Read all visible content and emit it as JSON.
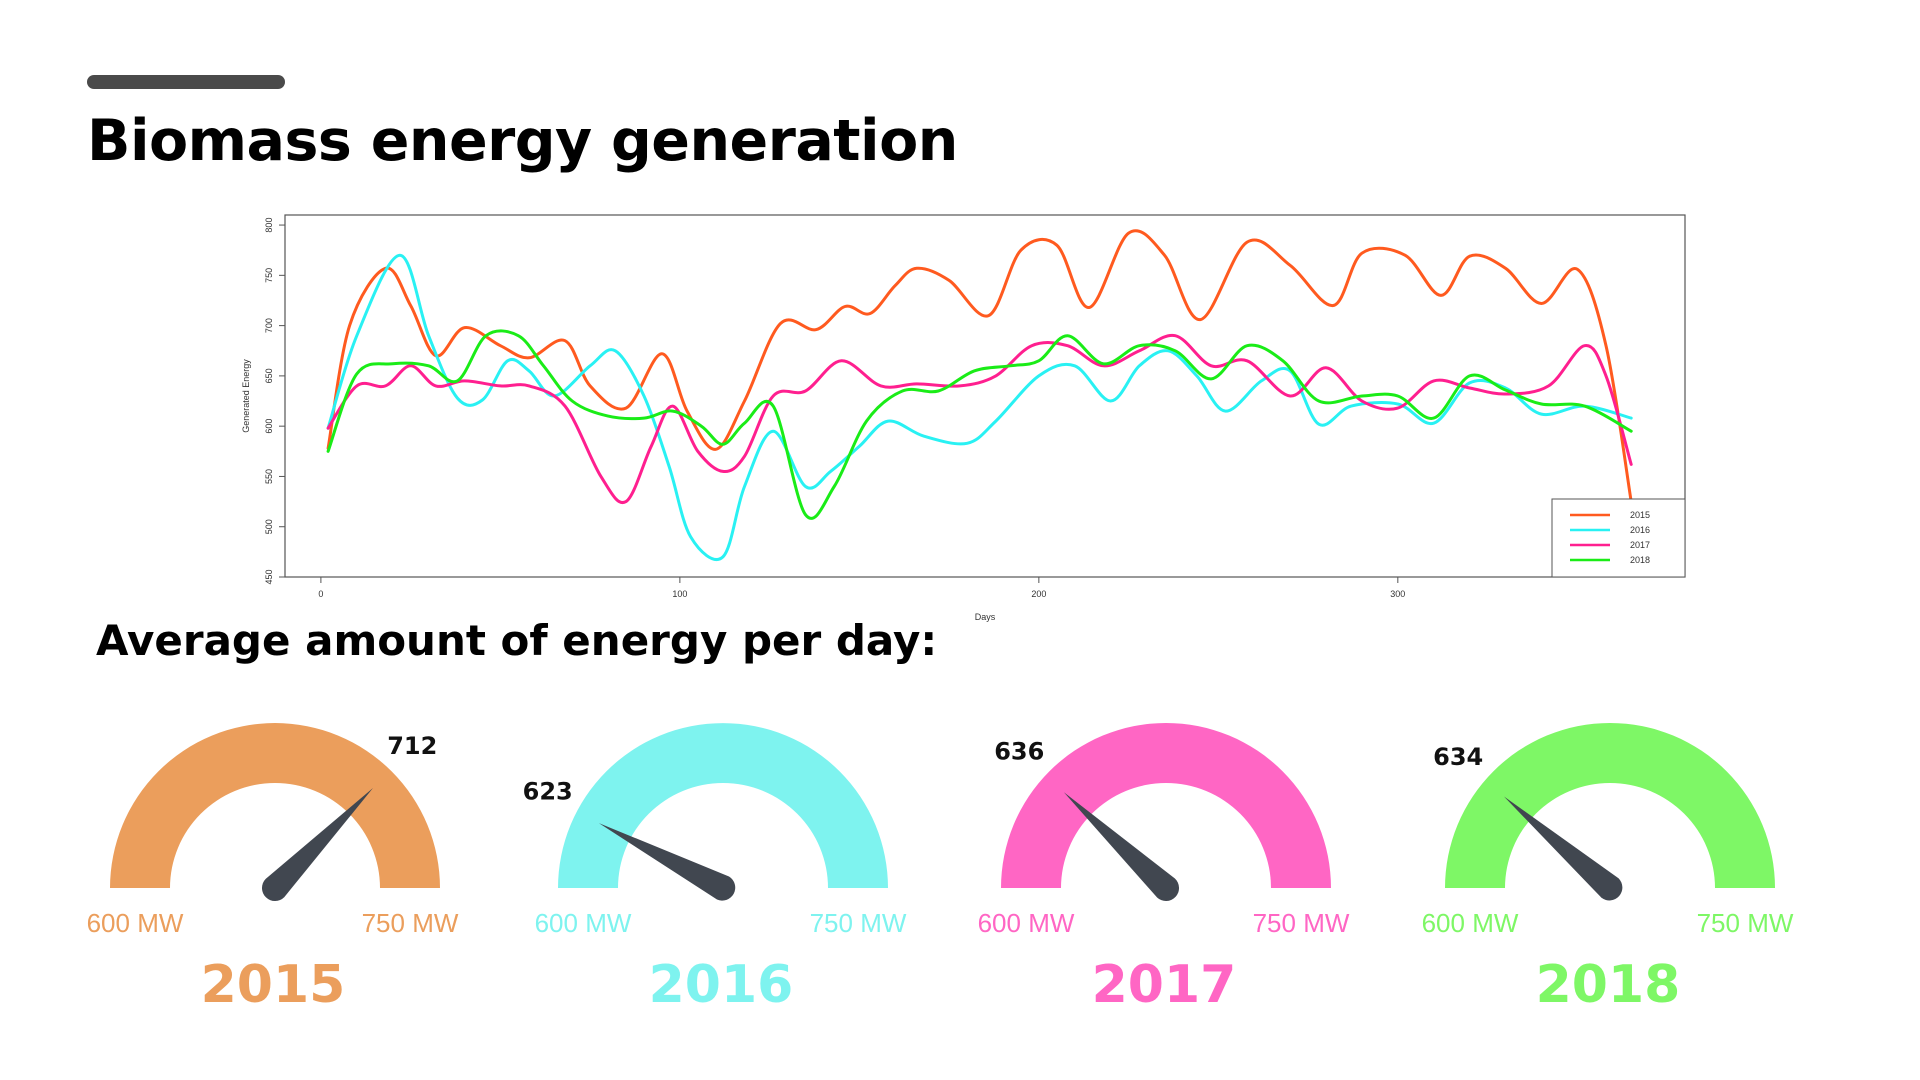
{
  "page": {
    "title": "Biomass energy generation",
    "subtitle": "Average amount of energy per day:"
  },
  "chart_data": {
    "type": "line",
    "title": "",
    "xlabel": "Days",
    "ylabel": "Generated Energy",
    "xlim": [
      -10,
      380
    ],
    "ylim": [
      450,
      810
    ],
    "xticks": [
      0,
      100,
      200,
      300
    ],
    "yticks": [
      450,
      500,
      550,
      600,
      650,
      700,
      750,
      800
    ],
    "legend": "bottom-right",
    "series": [
      {
        "name": "2015",
        "color": "#ff5a1f",
        "x": [
          2,
          8,
          18,
          25,
          32,
          40,
          50,
          58,
          68,
          75,
          85,
          95,
          102,
          110,
          118,
          128,
          138,
          146,
          153,
          160,
          166,
          175,
          186,
          195,
          205,
          214,
          225,
          235,
          245,
          258,
          270,
          282,
          290,
          302,
          312,
          320,
          330,
          340,
          350,
          358,
          365
        ],
        "y": [
          578,
          700,
          757,
          720,
          670,
          698,
          680,
          668,
          685,
          640,
          618,
          672,
          615,
          577,
          625,
          702,
          696,
          719,
          712,
          740,
          757,
          745,
          710,
          775,
          780,
          718,
          792,
          770,
          706,
          783,
          760,
          720,
          772,
          770,
          730,
          769,
          757,
          722,
          756,
          680,
          525
        ]
      },
      {
        "name": "2016",
        "color": "#29f1f3",
        "x": [
          2,
          10,
          22,
          30,
          38,
          45,
          52,
          58,
          65,
          75,
          82,
          90,
          97,
          103,
          112,
          118,
          126,
          135,
          142,
          150,
          158,
          168,
          180,
          188,
          200,
          210,
          220,
          228,
          236,
          244,
          252,
          262,
          270,
          278,
          287,
          300,
          310,
          320,
          330,
          340,
          352,
          365
        ],
        "y": [
          598,
          690,
          770,
          690,
          628,
          626,
          665,
          655,
          630,
          660,
          675,
          630,
          560,
          490,
          470,
          540,
          595,
          540,
          555,
          580,
          605,
          590,
          583,
          605,
          650,
          660,
          625,
          660,
          675,
          650,
          615,
          645,
          655,
          602,
          620,
          622,
          603,
          643,
          638,
          612,
          620,
          608
        ]
      },
      {
        "name": "2017",
        "color": "#ff1f8f",
        "x": [
          2,
          10,
          18,
          25,
          32,
          40,
          50,
          58,
          68,
          78,
          85,
          92,
          98,
          105,
          112,
          118,
          126,
          135,
          145,
          156,
          166,
          178,
          188,
          198,
          208,
          218,
          228,
          238,
          248,
          258,
          270,
          280,
          290,
          300,
          310,
          320,
          330,
          342,
          352,
          358,
          365
        ],
        "y": [
          598,
          640,
          640,
          660,
          640,
          645,
          640,
          640,
          620,
          550,
          525,
          580,
          620,
          575,
          555,
          570,
          630,
          635,
          665,
          640,
          642,
          640,
          650,
          680,
          680,
          660,
          675,
          690,
          660,
          665,
          630,
          658,
          625,
          618,
          645,
          638,
          632,
          640,
          680,
          650,
          562
        ]
      },
      {
        "name": "2018",
        "color": "#1aec17",
        "x": [
          2,
          10,
          20,
          30,
          38,
          46,
          55,
          62,
          70,
          80,
          90,
          98,
          106,
          112,
          118,
          126,
          135,
          143,
          152,
          162,
          172,
          182,
          192,
          200,
          208,
          218,
          228,
          238,
          248,
          258,
          268,
          278,
          290,
          300,
          310,
          320,
          330,
          340,
          352,
          365
        ],
        "y": [
          575,
          652,
          662,
          660,
          645,
          690,
          690,
          660,
          625,
          610,
          608,
          615,
          600,
          582,
          603,
          620,
          512,
          540,
          605,
          635,
          635,
          655,
          660,
          665,
          690,
          662,
          680,
          675,
          647,
          680,
          665,
          625,
          630,
          630,
          608,
          650,
          636,
          622,
          620,
          595
        ]
      }
    ]
  },
  "gauges": {
    "range_min": 600,
    "range_max": 750,
    "range_min_label": "600 MW",
    "range_max_label": "750 MW",
    "needle_color": "#414750",
    "items": [
      {
        "year": "2015",
        "value": 712,
        "value_label": "712",
        "color": "#eb9e5c"
      },
      {
        "year": "2016",
        "value": 623,
        "value_label": "623",
        "color": "#7ef3ef"
      },
      {
        "year": "2017",
        "value": 636,
        "value_label": "636",
        "color": "#ff66c4"
      },
      {
        "year": "2018",
        "value": 634,
        "value_label": "634",
        "color": "#7ef766"
      }
    ]
  }
}
